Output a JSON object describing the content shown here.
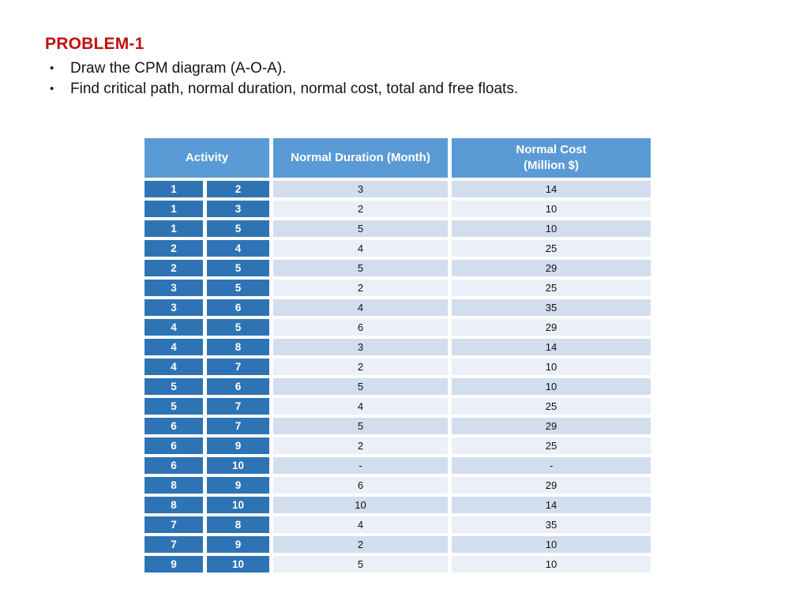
{
  "slide": {
    "title": "PROBLEM-1",
    "bullets": [
      "Draw the CPM diagram (A-O-A).",
      "Find critical path, normal duration, normal cost, total and free floats."
    ]
  },
  "table": {
    "header": {
      "activity": "Activity",
      "duration": "Normal Duration (Month)",
      "cost_line1": "Normal Cost",
      "cost_line2": "(Million $)"
    },
    "columns": [
      "activity_from_node",
      "activity_to_node",
      "normal_duration_month",
      "normal_cost_million_dollars"
    ],
    "rows": [
      [
        "1",
        "2",
        "3",
        "14"
      ],
      [
        "1",
        "3",
        "2",
        "10"
      ],
      [
        "1",
        "5",
        "5",
        "10"
      ],
      [
        "2",
        "4",
        "4",
        "25"
      ],
      [
        "2",
        "5",
        "5",
        "29"
      ],
      [
        "3",
        "5",
        "2",
        "25"
      ],
      [
        "3",
        "6",
        "4",
        "35"
      ],
      [
        "4",
        "5",
        "6",
        "29"
      ],
      [
        "4",
        "8",
        "3",
        "14"
      ],
      [
        "4",
        "7",
        "2",
        "10"
      ],
      [
        "5",
        "6",
        "5",
        "10"
      ],
      [
        "5",
        "7",
        "4",
        "25"
      ],
      [
        "6",
        "7",
        "5",
        "29"
      ],
      [
        "6",
        "9",
        "2",
        "25"
      ],
      [
        "6",
        "10",
        "-",
        "-"
      ],
      [
        "8",
        "9",
        "6",
        "29"
      ],
      [
        "8",
        "10",
        "10",
        "14"
      ],
      [
        "7",
        "8",
        "4",
        "35"
      ],
      [
        "7",
        "9",
        "2",
        "10"
      ],
      [
        "9",
        "10",
        "5",
        "10"
      ]
    ]
  },
  "colors": {
    "title_red": "#C01111",
    "header_blue": "#5B9BD5",
    "activity_cell_blue": "#2E74B5",
    "band_dark": "#D2DEEE",
    "band_light": "#EAEFF8"
  }
}
